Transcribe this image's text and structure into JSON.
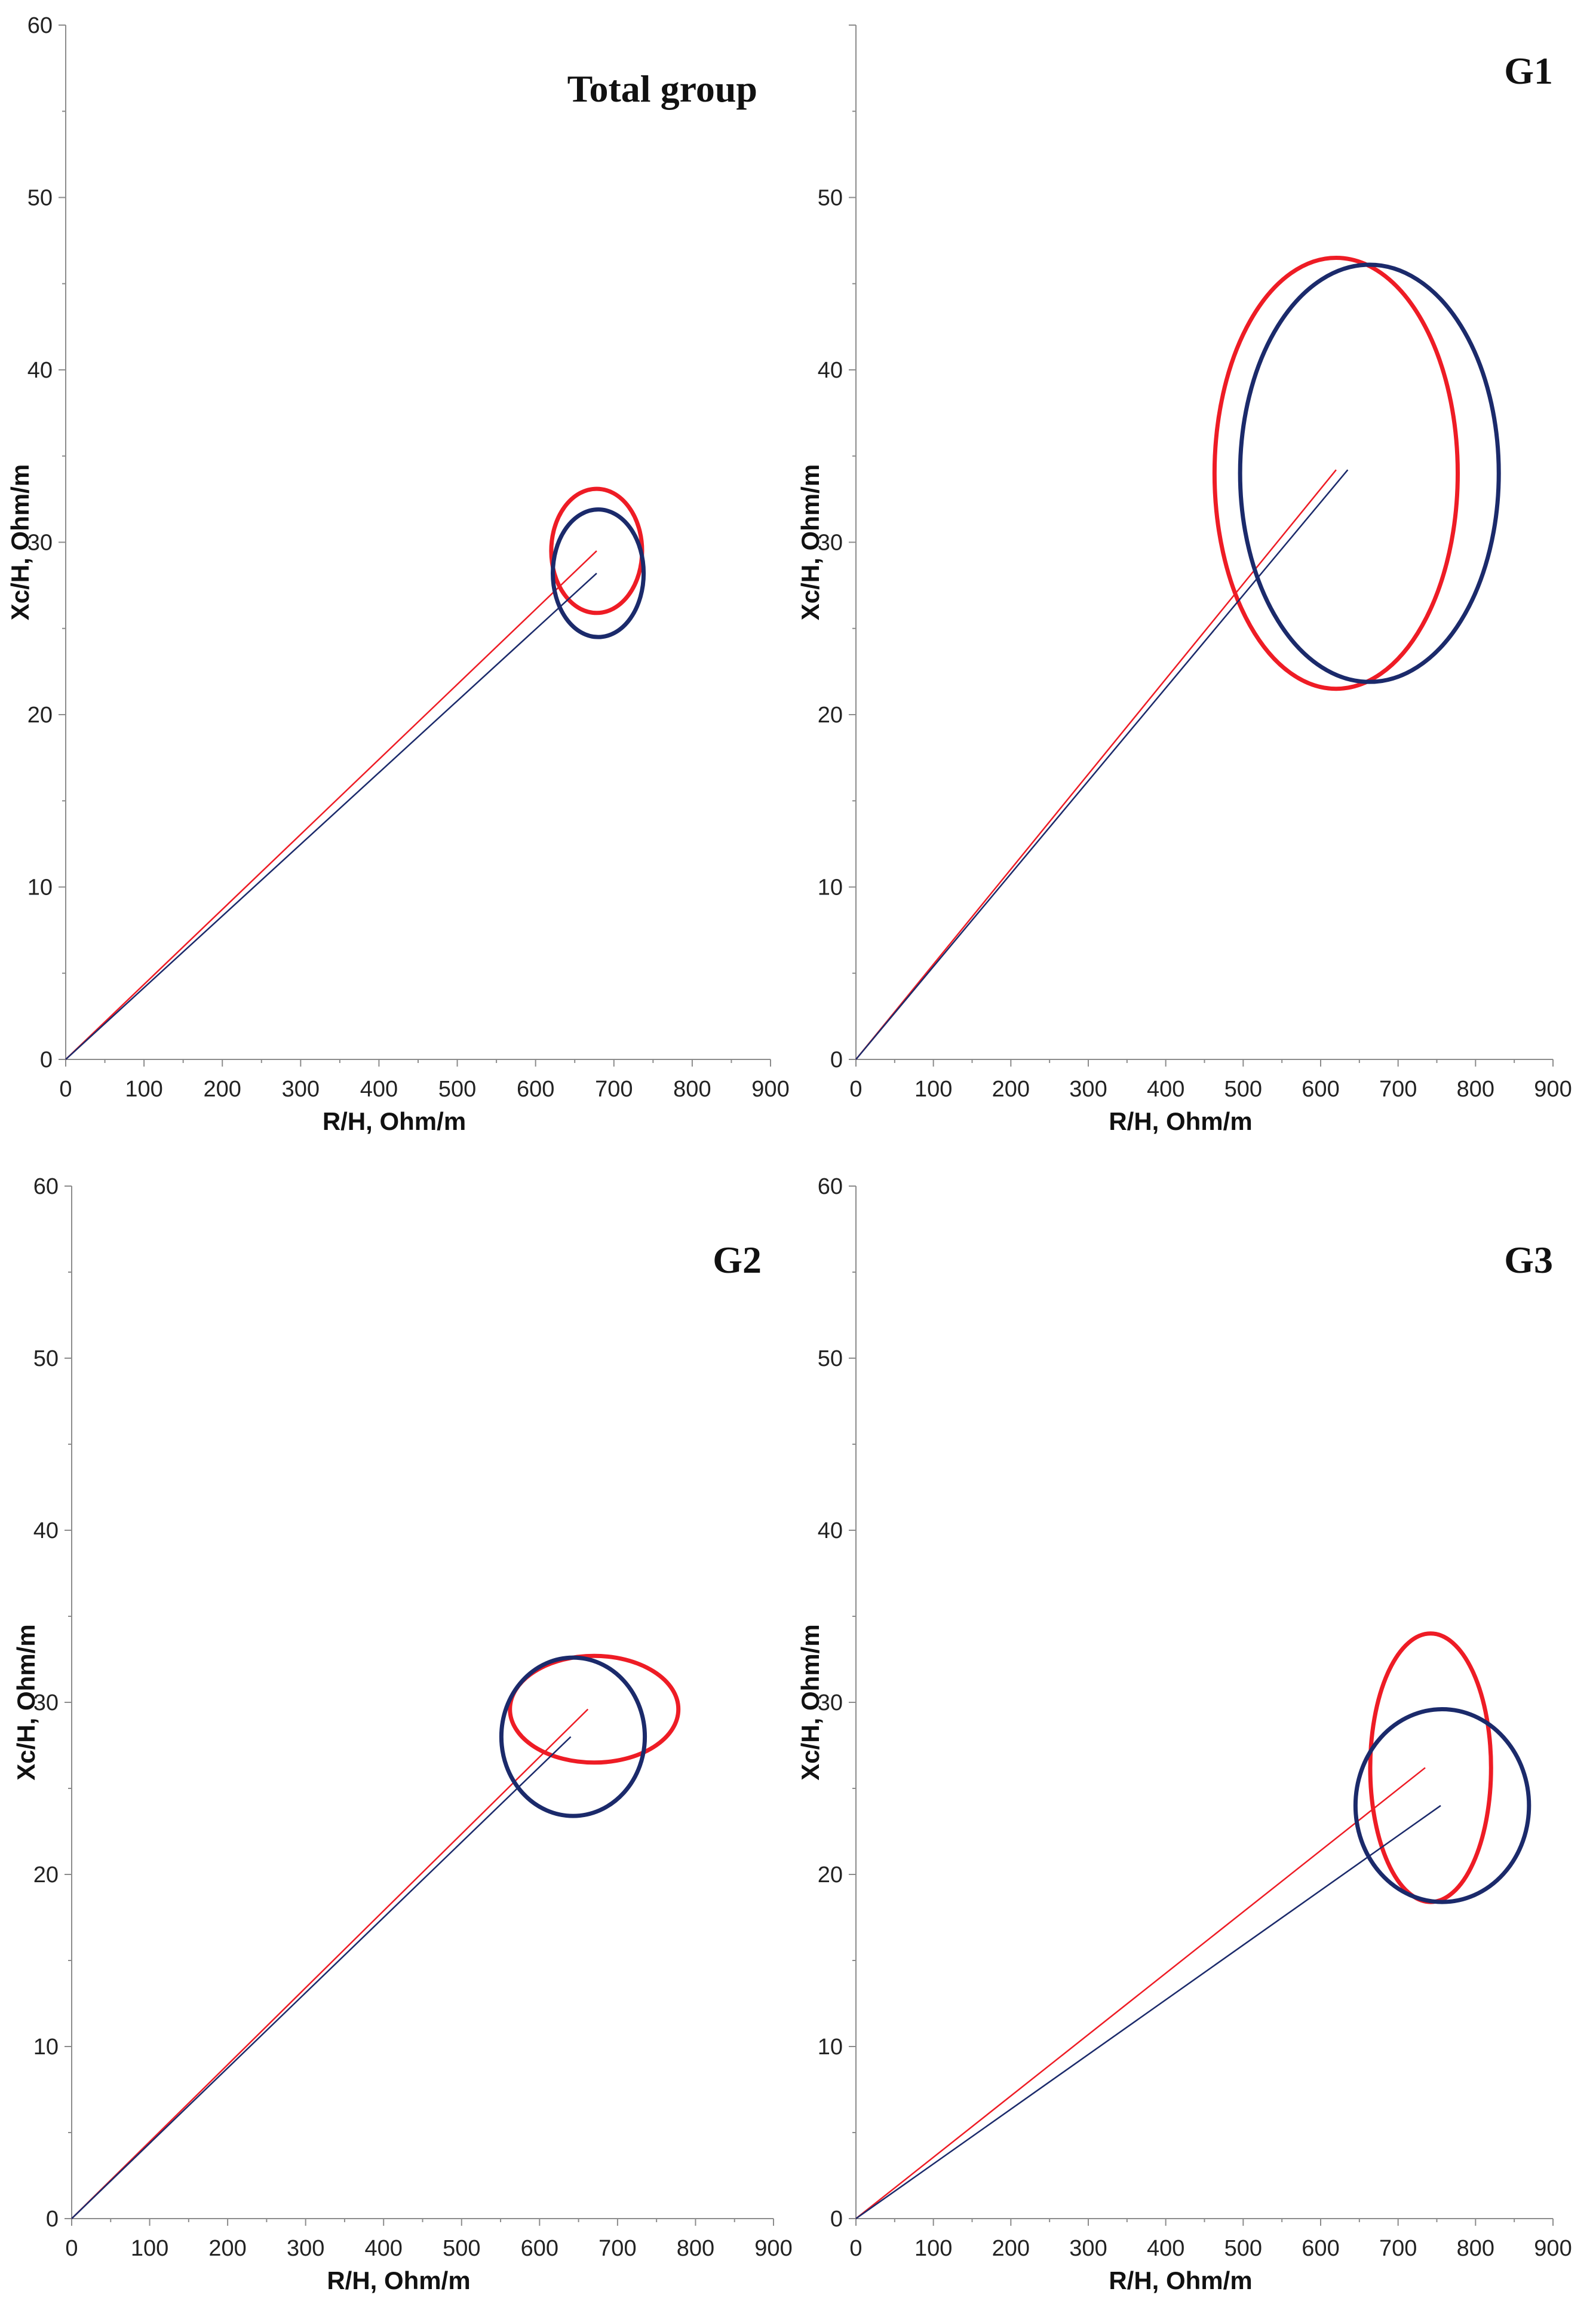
{
  "colors": {
    "red": "#ee1c25",
    "navy": "#1b2a6b",
    "axis": "#8c8c8c"
  },
  "chart_data": [
    {
      "type": "scatter",
      "title": "Total group",
      "xlabel": "R/H, Ohm/m",
      "ylabel": "Xc/H, Ohm/m",
      "xlim": [
        0,
        900
      ],
      "ylim": [
        0,
        60
      ],
      "xticks": [
        "0",
        "100",
        "200",
        "300",
        "400",
        "500",
        "600",
        "700",
        "800",
        "900"
      ],
      "yticks": [
        "0",
        "10",
        "20",
        "30",
        "40",
        "50",
        "60"
      ],
      "series": [
        {
          "name": "red",
          "color": "#ee1c25",
          "vector": [
            [
              0,
              0
            ],
            [
              678,
              29.5
            ]
          ],
          "ellipse": {
            "cx": 678,
            "cy": 29.5,
            "rx": 58,
            "ry": 3.6,
            "angle": 0
          }
        },
        {
          "name": "navy",
          "color": "#1b2a6b",
          "vector": [
            [
              0,
              0
            ],
            [
              678,
              28.2
            ]
          ],
          "ellipse": {
            "cx": 680,
            "cy": 28.2,
            "rx": 58,
            "ry": 3.7,
            "angle": 0
          }
        }
      ]
    },
    {
      "type": "scatter",
      "title": "G1",
      "xlabel": "R/H, Ohm/m",
      "ylabel": "Xc/H, Ohm/m",
      "xlim": [
        0,
        900
      ],
      "ylim": [
        0,
        60
      ],
      "xticks": [
        "0",
        "100",
        "200",
        "300",
        "400",
        "500",
        "600",
        "700",
        "800",
        "900"
      ],
      "yticks": [
        "0",
        "10",
        "20",
        "30",
        "40",
        "50"
      ],
      "series": [
        {
          "name": "red",
          "color": "#ee1c25",
          "vector": [
            [
              0,
              0
            ],
            [
              620,
              34.2
            ]
          ],
          "ellipse": {
            "cx": 620,
            "cy": 34.0,
            "rx": 157,
            "ry": 12.5,
            "angle": 0
          }
        },
        {
          "name": "navy",
          "color": "#1b2a6b",
          "vector": [
            [
              0,
              0
            ],
            [
              635,
              34.2
            ]
          ],
          "ellipse": {
            "cx": 663,
            "cy": 34.0,
            "rx": 167,
            "ry": 12.1,
            "angle": 0
          }
        }
      ]
    },
    {
      "type": "scatter",
      "title": "G2",
      "xlabel": "R/H, Ohm/m",
      "ylabel": "Xc/H, Ohm/m",
      "xlim": [
        0,
        900
      ],
      "ylim": [
        0,
        60
      ],
      "xticks": [
        "0",
        "100",
        "200",
        "300",
        "400",
        "500",
        "600",
        "700",
        "800",
        "900"
      ],
      "yticks": [
        "0",
        "10",
        "20",
        "30",
        "40",
        "50",
        "60"
      ],
      "series": [
        {
          "name": "red",
          "color": "#ee1c25",
          "vector": [
            [
              0,
              0
            ],
            [
              662,
              29.6
            ]
          ],
          "ellipse": {
            "cx": 670,
            "cy": 29.6,
            "rx": 108,
            "ry": 3.1,
            "angle": 0
          }
        },
        {
          "name": "navy",
          "color": "#1b2a6b",
          "vector": [
            [
              0,
              0
            ],
            [
              640,
              28.0
            ]
          ],
          "ellipse": {
            "cx": 643,
            "cy": 28.0,
            "rx": 92,
            "ry": 4.6,
            "angle": 0
          }
        }
      ]
    },
    {
      "type": "scatter",
      "title": "G3",
      "xlabel": "R/H, Ohm/m",
      "ylabel": "Xc/H, Ohm/m",
      "xlim": [
        0,
        900
      ],
      "ylim": [
        0,
        60
      ],
      "xticks": [
        "0",
        "100",
        "200",
        "300",
        "400",
        "500",
        "600",
        "700",
        "800",
        "900"
      ],
      "yticks": [
        "0",
        "10",
        "20",
        "30",
        "40",
        "50",
        "60"
      ],
      "series": [
        {
          "name": "red",
          "color": "#ee1c25",
          "vector": [
            [
              0,
              0
            ],
            [
              735,
              26.2
            ]
          ],
          "ellipse": {
            "cx": 742,
            "cy": 26.2,
            "rx": 78,
            "ry": 7.8,
            "angle": 0
          }
        },
        {
          "name": "navy",
          "color": "#1b2a6b",
          "vector": [
            [
              0,
              0
            ],
            [
              755,
              24.0
            ]
          ],
          "ellipse": {
            "cx": 757,
            "cy": 24.0,
            "rx": 112,
            "ry": 5.6,
            "angle": 0
          }
        }
      ]
    }
  ]
}
